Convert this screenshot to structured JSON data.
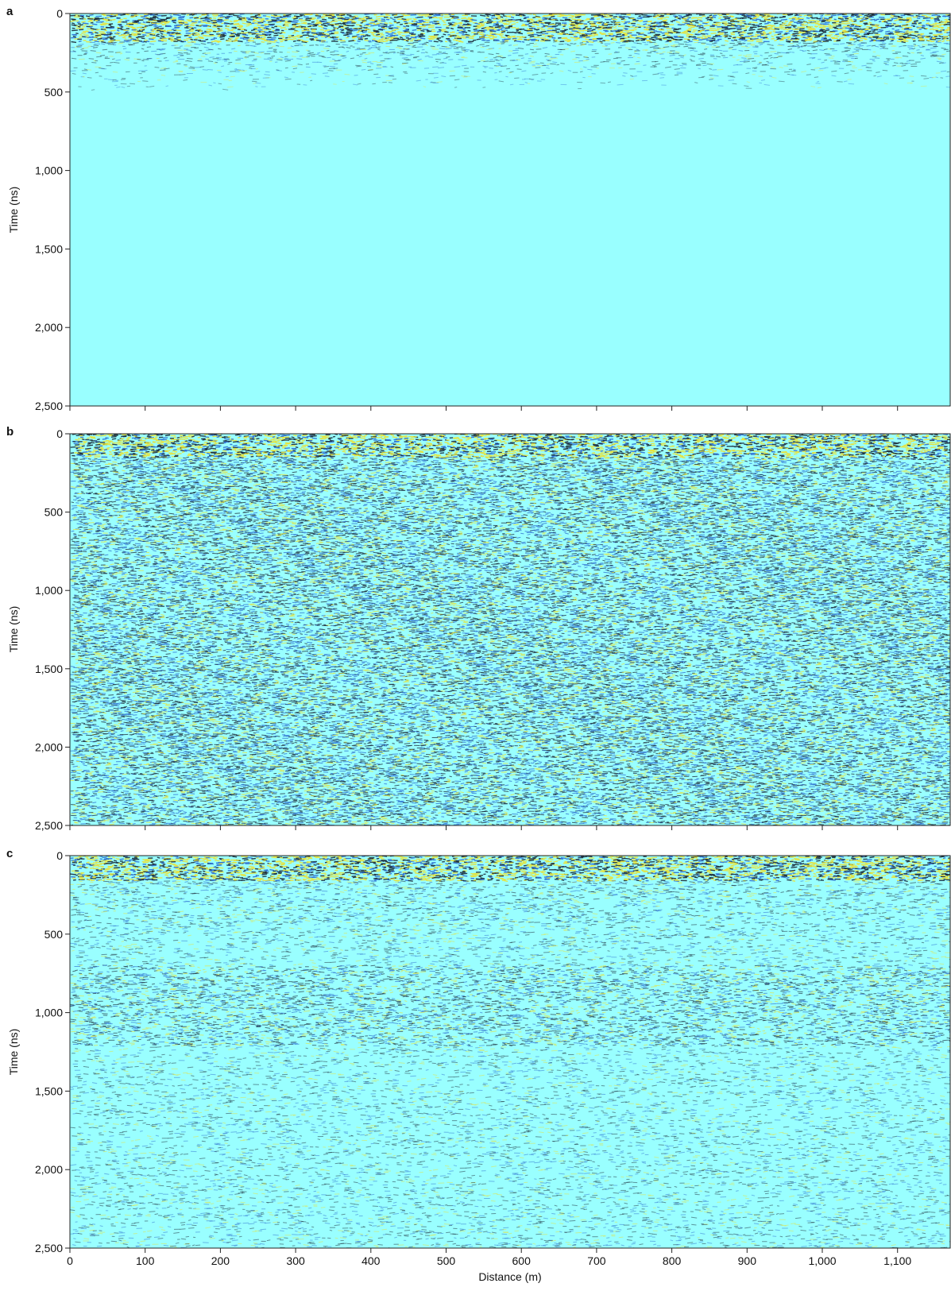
{
  "chart_data": [
    {
      "type": "heatmap",
      "panel": "a",
      "title": "",
      "ylabel": "Time (ns)",
      "xlabel": "",
      "ylim": [
        2500,
        0
      ],
      "xlim": [
        0,
        1170
      ],
      "yticks": [
        0,
        500,
        1000,
        1500,
        2000,
        2500
      ],
      "ytick_labels": [
        "0",
        "500",
        "1,000",
        "1,500",
        "2,000",
        "2,500"
      ],
      "xticks": [
        0,
        100,
        200,
        300,
        400,
        500,
        600,
        700,
        800,
        900,
        1000,
        1100
      ],
      "xtick_labels": [],
      "strong_signal_end_ns": 180,
      "weak_signal_end_ns": 500,
      "deep_noise_level": 0.0
    },
    {
      "type": "heatmap",
      "panel": "b",
      "title": "",
      "ylabel": "Time (ns)",
      "xlabel": "",
      "ylim": [
        2500,
        0
      ],
      "xlim": [
        0,
        1170
      ],
      "yticks": [
        0,
        500,
        1000,
        1500,
        2000,
        2500
      ],
      "ytick_labels": [
        "0",
        "500",
        "1,000",
        "1,500",
        "2,000",
        "2,500"
      ],
      "xticks": [
        0,
        100,
        200,
        300,
        400,
        500,
        600,
        700,
        800,
        900,
        1000,
        1100
      ],
      "xtick_labels": [],
      "strong_signal_end_ns": 150,
      "weak_signal_end_ns": 700,
      "deep_noise_level": 0.85
    },
    {
      "type": "heatmap",
      "panel": "c",
      "title": "",
      "ylabel": "Time (ns)",
      "xlabel": "Distance (m)",
      "ylim": [
        2500,
        0
      ],
      "xlim": [
        0,
        1170
      ],
      "yticks": [
        0,
        500,
        1000,
        1500,
        2000,
        2500
      ],
      "ytick_labels": [
        "0",
        "500",
        "1,000",
        "1,500",
        "2,000",
        "2,500"
      ],
      "xticks": [
        0,
        100,
        200,
        300,
        400,
        500,
        600,
        700,
        800,
        900,
        1000,
        1100
      ],
      "xtick_labels": [
        "0",
        "100",
        "200",
        "300",
        "400",
        "500",
        "600",
        "700",
        "800",
        "900",
        "1,000",
        "1,100"
      ],
      "strong_signal_end_ns": 160,
      "weak_signal_end_ns": 650,
      "reflector_band_ns": [
        700,
        1200
      ],
      "deep_noise_level": 0.3
    }
  ],
  "colors": {
    "background": "#99ffff",
    "trace_dark": "#1c2b3a",
    "trace_yellow": "#e8e23a",
    "trace_blue": "#2f6fd0",
    "axis": "#222222"
  }
}
